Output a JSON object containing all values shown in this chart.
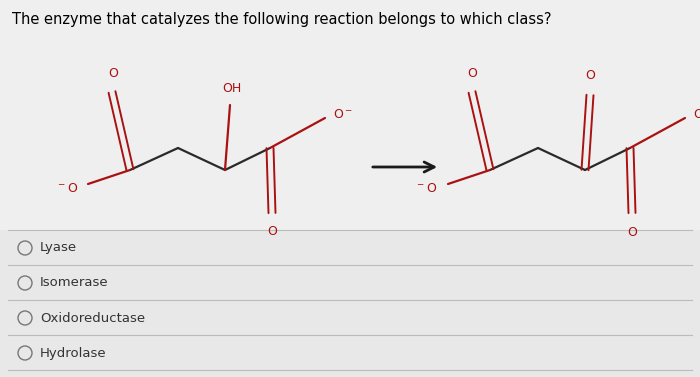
{
  "title": "The enzyme that catalyzes the following reaction belongs to which class?",
  "background_color": "#e8e8e8",
  "panel_bg": "#f0f0f0",
  "options": [
    "Lyase",
    "Isomerase",
    "Oxidoreductase",
    "Hydrolase"
  ],
  "bond_color": "#2a2a2a",
  "oxygen_color": "#aa1111",
  "title_fontsize": 10.5,
  "option_fontsize": 9.5,
  "arrow_color": "#1a1a1a",
  "line_color": "#bbbbbb"
}
